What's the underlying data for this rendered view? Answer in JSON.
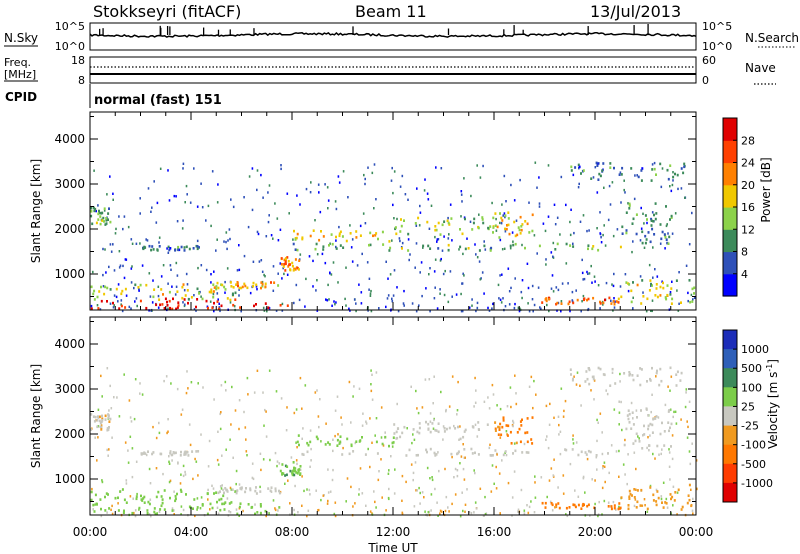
{
  "header": {
    "station": "Stokkseyri (fitACF)",
    "beam": "Beam 11",
    "date": "13/Jul/2013"
  },
  "nsky_panel": {
    "left_label": "N.Sky",
    "left_ticks": [
      "10^5",
      "10^0"
    ],
    "right_ticks": [
      "10^5",
      "10^0"
    ],
    "right_label": "N.Search"
  },
  "freq_panel": {
    "left_label_line1": "Freq.",
    "left_label_line2": "[MHz]",
    "left_ticks": [
      "18",
      "8"
    ],
    "right_ticks": [
      "60",
      "0"
    ],
    "right_label": "Nave"
  },
  "cpid_panel": {
    "label": "CPID",
    "text": "normal (fast) 151"
  },
  "x_axis": {
    "tick_labels": [
      "00:00",
      "04:00",
      "08:00",
      "12:00",
      "16:00",
      "20:00",
      "00:00"
    ],
    "label": "Time UT"
  },
  "power_panel": {
    "ylabel": "Slant Range [km]",
    "yticks": [
      "1000",
      "2000",
      "3000",
      "4000"
    ],
    "colorbar_title": "Power [dB]",
    "colorbar_ticks": [
      "4",
      "8",
      "12",
      "16",
      "20",
      "24",
      "28"
    ],
    "colors": [
      "#0000ff",
      "#2e50b8",
      "#3c8a5a",
      "#8cd24a",
      "#f0c800",
      "#ff8000",
      "#ff4000",
      "#e00000"
    ]
  },
  "velocity_panel": {
    "ylabel": "Slant Range [km]",
    "yticks": [
      "1000",
      "2000",
      "3000",
      "4000"
    ],
    "colorbar_title": "Velocity [m s",
    "colorbar_title_sup": "-1",
    "colorbar_title_end": "]",
    "colorbar_ticks": [
      "1000",
      "500",
      "100",
      "25",
      "-25",
      "-100",
      "-500",
      "-1000"
    ],
    "colors": [
      "#1c2db8",
      "#2e5fb8",
      "#3c8a5a",
      "#7ccd4a",
      "#c8c8c0",
      "#f09a20",
      "#ff7800",
      "#ff3c00",
      "#e00000"
    ]
  },
  "chart_data": {
    "type": "heatmap",
    "x_range_hours": [
      0,
      24
    ],
    "y_range_km": [
      200,
      4600
    ],
    "power_scale_db": [
      0,
      30
    ],
    "velocity_scale_ms": [
      -1000,
      1000
    ],
    "scatter_features": [
      {
        "t0": 0.0,
        "t1": 7.8,
        "r0": 250,
        "r1": 480,
        "power_db": 28,
        "velocity_ms": 60
      },
      {
        "t0": 0.0,
        "t1": 6.0,
        "r0": 450,
        "r1": 800,
        "power_db": 14,
        "velocity_ms": 40
      },
      {
        "t0": 0.0,
        "t1": 0.8,
        "r0": 2100,
        "r1": 2500,
        "power_db": 10,
        "velocity_ms": -15
      },
      {
        "t0": 2.0,
        "t1": 4.3,
        "r0": 1550,
        "r1": 1650,
        "power_db": 6,
        "velocity_ms": 0
      },
      {
        "t0": 5.0,
        "t1": 7.5,
        "r0": 700,
        "r1": 850,
        "power_db": 18,
        "velocity_ms": 10
      },
      {
        "t0": 7.5,
        "t1": 8.3,
        "r0": 1100,
        "r1": 1400,
        "power_db": 20,
        "velocity_ms": 80
      },
      {
        "t0": 8.0,
        "t1": 12.0,
        "r0": 1750,
        "r1": 2000,
        "power_db": 16,
        "velocity_ms": 40
      },
      {
        "t0": 8.0,
        "t1": 21.0,
        "r0": 1550,
        "r1": 1700,
        "power_db": 10,
        "velocity_ms": 0
      },
      {
        "t0": 12.0,
        "t1": 16.0,
        "r0": 1900,
        "r1": 2300,
        "power_db": 12,
        "velocity_ms": -5
      },
      {
        "t0": 16.0,
        "t1": 17.5,
        "r0": 1800,
        "r1": 2400,
        "power_db": 16,
        "velocity_ms": -150
      },
      {
        "t0": 17.8,
        "t1": 21.0,
        "r0": 350,
        "r1": 500,
        "power_db": 22,
        "velocity_ms": -200
      },
      {
        "t0": 21.0,
        "t1": 24.0,
        "r0": 350,
        "r1": 900,
        "power_db": 14,
        "velocity_ms": -60
      },
      {
        "t0": 21.0,
        "t1": 23.0,
        "r0": 1700,
        "r1": 2600,
        "power_db": 8,
        "velocity_ms": 0
      },
      {
        "t0": 19.0,
        "t1": 23.5,
        "r0": 3100,
        "r1": 3500,
        "power_db": 6,
        "velocity_ms": 0
      }
    ]
  }
}
